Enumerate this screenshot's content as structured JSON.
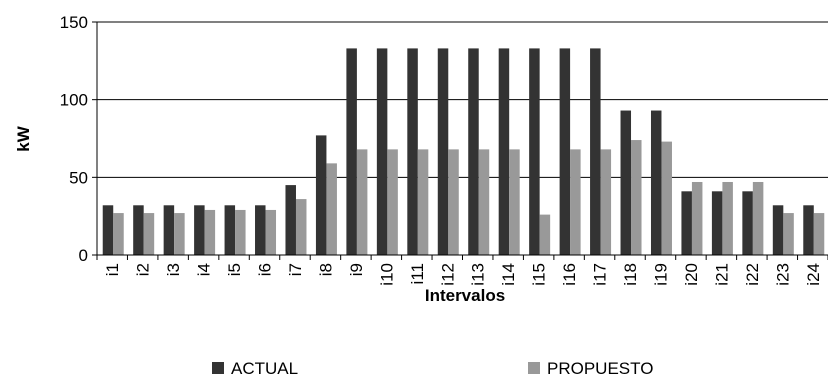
{
  "chart_data": {
    "type": "bar",
    "title": "",
    "xlabel": "Intervalos",
    "ylabel": "kW",
    "ylim": [
      0,
      150
    ],
    "yticks": [
      0,
      50,
      100,
      150
    ],
    "grid": "horizontal",
    "legend_position": "bottom",
    "categories": [
      "i1",
      "i2",
      "i3",
      "i4",
      "i5",
      "i6",
      "i7",
      "i8",
      "i9",
      "i10",
      "i11",
      "i12",
      "i13",
      "i14",
      "i15",
      "i16",
      "i17",
      "i18",
      "i19",
      "i20",
      "i21",
      "i22",
      "i23",
      "i24"
    ],
    "series": [
      {
        "name": "ACTUAL",
        "color": "#333333",
        "values": [
          32,
          32,
          32,
          32,
          32,
          32,
          45,
          77,
          133,
          133,
          133,
          133,
          133,
          133,
          133,
          133,
          133,
          93,
          93,
          41,
          41,
          41,
          32,
          32
        ]
      },
      {
        "name": "PROPUESTO",
        "color": "#999999",
        "values": [
          27,
          27,
          27,
          29,
          29,
          29,
          36,
          59,
          68,
          68,
          68,
          68,
          68,
          68,
          26,
          68,
          68,
          74,
          73,
          47,
          47,
          47,
          27,
          27
        ]
      }
    ]
  }
}
